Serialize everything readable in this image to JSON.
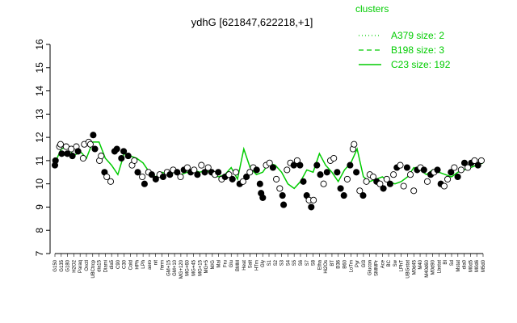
{
  "chart_data": {
    "type": "line",
    "title": "ydhG [621847,622218,+1]",
    "ylim": [
      7,
      16
    ],
    "yticks": [
      7,
      8,
      9,
      10,
      11,
      12,
      13,
      14,
      15,
      16
    ],
    "grid": false,
    "legend_placement": "top-right",
    "legend": {
      "title": "clusters",
      "items": [
        {
          "label": "A379 size: 2",
          "style": "dotted"
        },
        {
          "label": "B198 size: 3",
          "style": "dashed"
        },
        {
          "label": "C23 size: 192",
          "style": "solid"
        }
      ]
    },
    "x_tick_labels": [
      "G150",
      "G135",
      "G180",
      "H2O2",
      "Paraq",
      "Oxctl",
      "UBCtrcp",
      "dia15",
      "Diami",
      "dia5",
      "C90",
      "C30",
      "Cold",
      "HPh",
      "LPh",
      "aero",
      "nit",
      "ferm",
      "GM+15",
      "GM+10",
      "MG+120",
      "MG+60",
      "MG+45",
      "MG+15",
      "MG+5",
      "M/G",
      "Mal",
      "Fru",
      "Glu",
      "BMM",
      "Heat",
      "Salt",
      "HTm",
      "Gly",
      "S1",
      "S2",
      "S3",
      "S4",
      "S5",
      "S6",
      "S7",
      "S8",
      "Etha",
      "Hi2Os",
      "BT",
      "B36",
      "B60",
      "LoTm",
      "Pyr",
      "Gl3",
      "Glucon",
      "SMMPr",
      "Ace",
      "BC",
      "Sw",
      "LPhT",
      "UBGstat",
      "M0d45",
      "M40",
      "M40d60",
      "M0d90",
      "Lbstat",
      "BI",
      "Sd",
      "Mstat",
      "dia0",
      "M0d5",
      "M0d6",
      "M5d0"
    ],
    "series": [
      {
        "name": "",
        "style": "solid",
        "x": [
          0,
          1,
          2,
          3,
          4,
          5,
          6,
          7,
          8,
          9,
          10,
          11,
          12,
          13,
          14,
          15,
          16,
          17,
          18,
          19,
          20,
          21,
          22,
          23,
          24,
          25,
          26,
          27,
          28,
          29,
          30,
          31,
          32,
          33,
          34,
          35,
          36,
          37,
          38,
          39,
          40,
          41,
          42,
          43,
          44,
          45,
          46,
          47,
          48,
          49,
          50,
          51,
          52,
          53,
          54,
          55,
          56,
          57,
          58,
          59,
          60,
          61,
          62,
          63,
          64,
          65,
          66,
          67,
          68
        ],
        "values": [
          10.9,
          11.5,
          11.6,
          11.2,
          11.4,
          11.1,
          11.8,
          11.8,
          11.1,
          10.8,
          10.4,
          11.3,
          11.2,
          11.1,
          10.9,
          10.5,
          10.3,
          10.5,
          10.4,
          10.5,
          10.4,
          10.5,
          10.6,
          10.5,
          10.6,
          10.4,
          10.3,
          10.4,
          10.7,
          10.2,
          11.5,
          10.7,
          10.4,
          10.5,
          10.9,
          10.8,
          10.5,
          10.0,
          9.8,
          10.1,
          10.6,
          10.5,
          11.3,
          10.8,
          10.5,
          10.1,
          10.6,
          10.9,
          11.5,
          10.3,
          10.1,
          10.2,
          10.3,
          10.1,
          10.0,
          10.1,
          10.3,
          10.7,
          10.6,
          10.4,
          10.6,
          10.5,
          10.4,
          10.3,
          10.5,
          10.6,
          10.7,
          10.8,
          10.9
        ]
      }
    ],
    "points": [
      {
        "x": 0,
        "y": 10.8,
        "f": true
      },
      {
        "x": 0.1,
        "y": 11.0,
        "f": true
      },
      {
        "x": 0.8,
        "y": 11.6,
        "f": false
      },
      {
        "x": 1,
        "y": 11.7,
        "f": false
      },
      {
        "x": 1.2,
        "y": 11.3,
        "f": true
      },
      {
        "x": 2,
        "y": 11.6,
        "f": false
      },
      {
        "x": 2.2,
        "y": 11.3,
        "f": true
      },
      {
        "x": 2.9,
        "y": 11.5,
        "f": false
      },
      {
        "x": 3.1,
        "y": 11.2,
        "f": true
      },
      {
        "x": 3.8,
        "y": 11.6,
        "f": false
      },
      {
        "x": 4.1,
        "y": 11.4,
        "f": true
      },
      {
        "x": 5,
        "y": 11.1,
        "f": false
      },
      {
        "x": 5.2,
        "y": 11.7,
        "f": false
      },
      {
        "x": 6,
        "y": 11.8,
        "f": false
      },
      {
        "x": 6.3,
        "y": 11.7,
        "f": false
      },
      {
        "x": 6.8,
        "y": 12.1,
        "f": true
      },
      {
        "x": 7.1,
        "y": 11.5,
        "f": true
      },
      {
        "x": 7.9,
        "y": 11.0,
        "f": false
      },
      {
        "x": 8.2,
        "y": 11.2,
        "f": false
      },
      {
        "x": 8.8,
        "y": 10.5,
        "f": true
      },
      {
        "x": 9.2,
        "y": 10.3,
        "f": false
      },
      {
        "x": 9.9,
        "y": 10.1,
        "f": false
      },
      {
        "x": 10.6,
        "y": 11.4,
        "f": true
      },
      {
        "x": 11,
        "y": 11.5,
        "f": true
      },
      {
        "x": 11.8,
        "y": 11.1,
        "f": true
      },
      {
        "x": 12.2,
        "y": 11.4,
        "f": true
      },
      {
        "x": 13,
        "y": 11.2,
        "f": true
      },
      {
        "x": 13.7,
        "y": 10.8,
        "f": false
      },
      {
        "x": 14.1,
        "y": 11.0,
        "f": false
      },
      {
        "x": 14.7,
        "y": 10.5,
        "f": true
      },
      {
        "x": 15.5,
        "y": 10.3,
        "f": false
      },
      {
        "x": 15.9,
        "y": 10.0,
        "f": true
      },
      {
        "x": 16.6,
        "y": 10.5,
        "f": false
      },
      {
        "x": 17.2,
        "y": 10.4,
        "f": true
      },
      {
        "x": 17.9,
        "y": 10.2,
        "f": true
      },
      {
        "x": 18.6,
        "y": 10.4,
        "f": false
      },
      {
        "x": 19.2,
        "y": 10.3,
        "f": true
      },
      {
        "x": 19.9,
        "y": 10.5,
        "f": false
      },
      {
        "x": 20.4,
        "y": 10.4,
        "f": true
      },
      {
        "x": 21,
        "y": 10.6,
        "f": false
      },
      {
        "x": 21.7,
        "y": 10.5,
        "f": true
      },
      {
        "x": 22.3,
        "y": 10.3,
        "f": false
      },
      {
        "x": 22.9,
        "y": 10.6,
        "f": true
      },
      {
        "x": 23.5,
        "y": 10.7,
        "f": false
      },
      {
        "x": 24.1,
        "y": 10.5,
        "f": true
      },
      {
        "x": 24.7,
        "y": 10.6,
        "f": false
      },
      {
        "x": 25.3,
        "y": 10.4,
        "f": true
      },
      {
        "x": 26,
        "y": 10.8,
        "f": false
      },
      {
        "x": 26.6,
        "y": 10.5,
        "f": true
      },
      {
        "x": 27.2,
        "y": 10.7,
        "f": false
      },
      {
        "x": 27.8,
        "y": 10.5,
        "f": true
      },
      {
        "x": 28.4,
        "y": 10.4,
        "f": false
      },
      {
        "x": 29,
        "y": 10.5,
        "f": true
      },
      {
        "x": 29.6,
        "y": 10.2,
        "f": false
      },
      {
        "x": 30.2,
        "y": 10.3,
        "f": true
      },
      {
        "x": 30.9,
        "y": 10.4,
        "f": false
      },
      {
        "x": 31.5,
        "y": 10.2,
        "f": true
      },
      {
        "x": 32.1,
        "y": 10.5,
        "f": false
      },
      {
        "x": 32.8,
        "y": 10.0,
        "f": true
      },
      {
        "x": 33.4,
        "y": 10.1,
        "f": false
      },
      {
        "x": 34,
        "y": 10.3,
        "f": true
      },
      {
        "x": 34.6,
        "y": 10.5,
        "f": false
      },
      {
        "x": 35.2,
        "y": 10.7,
        "f": false
      },
      {
        "x": 35.8,
        "y": 10.6,
        "f": true
      },
      {
        "x": 36.4,
        "y": 10.0,
        "f": true
      },
      {
        "x": 36.6,
        "y": 9.6,
        "f": true
      },
      {
        "x": 36.9,
        "y": 9.4,
        "f": true
      },
      {
        "x": 37.5,
        "y": 10.8,
        "f": false
      },
      {
        "x": 38.1,
        "y": 10.9,
        "f": false
      },
      {
        "x": 38.7,
        "y": 10.7,
        "f": true
      },
      {
        "x": 39.3,
        "y": 10.2,
        "f": false
      },
      {
        "x": 39.9,
        "y": 9.8,
        "f": false
      },
      {
        "x": 40.4,
        "y": 9.5,
        "f": true
      },
      {
        "x": 40.6,
        "y": 9.1,
        "f": true
      },
      {
        "x": 41.2,
        "y": 10.6,
        "f": false
      },
      {
        "x": 41.8,
        "y": 10.9,
        "f": false
      },
      {
        "x": 42.4,
        "y": 10.8,
        "f": true
      },
      {
        "x": 43,
        "y": 11.0,
        "f": false
      },
      {
        "x": 43.5,
        "y": 10.8,
        "f": true
      },
      {
        "x": 44.1,
        "y": 10.1,
        "f": true
      },
      {
        "x": 44.7,
        "y": 9.5,
        "f": true
      },
      {
        "x": 45.1,
        "y": 9.3,
        "f": false
      },
      {
        "x": 45.5,
        "y": 9.0,
        "f": true
      },
      {
        "x": 45.9,
        "y": 9.3,
        "f": false
      },
      {
        "x": 46.5,
        "y": 10.8,
        "f": true
      },
      {
        "x": 47.1,
        "y": 10.4,
        "f": true
      },
      {
        "x": 47.7,
        "y": 10.0,
        "f": false
      },
      {
        "x": 48.3,
        "y": 10.5,
        "f": true
      },
      {
        "x": 48.9,
        "y": 11.0,
        "f": false
      },
      {
        "x": 49.5,
        "y": 11.1,
        "f": false
      },
      {
        "x": 50.1,
        "y": 10.5,
        "f": true
      },
      {
        "x": 50.7,
        "y": 9.8,
        "f": true
      },
      {
        "x": 51.3,
        "y": 9.5,
        "f": true
      },
      {
        "x": 51.9,
        "y": 10.2,
        "f": false
      },
      {
        "x": 52.4,
        "y": 10.8,
        "f": true
      },
      {
        "x": 52.9,
        "y": 11.5,
        "f": false
      },
      {
        "x": 53.1,
        "y": 11.7,
        "f": false
      },
      {
        "x": 53.5,
        "y": 10.5,
        "f": true
      },
      {
        "x": 54.1,
        "y": 9.7,
        "f": false
      },
      {
        "x": 54.7,
        "y": 9.5,
        "f": true
      },
      {
        "x": 55.3,
        "y": 10.1,
        "f": false
      },
      {
        "x": 55.9,
        "y": 10.4,
        "f": false
      },
      {
        "x": 56.5,
        "y": 10.3,
        "f": false
      },
      {
        "x": 57.1,
        "y": 10.1,
        "f": true
      },
      {
        "x": 57.7,
        "y": 10.0,
        "f": false
      },
      {
        "x": 58.3,
        "y": 9.8,
        "f": true
      },
      {
        "x": 58.9,
        "y": 10.2,
        "f": false
      },
      {
        "x": 59.5,
        "y": 10.0,
        "f": true
      },
      {
        "x": 60.1,
        "y": 10.4,
        "f": false
      },
      {
        "x": 60.7,
        "y": 10.7,
        "f": true
      },
      {
        "x": 61.3,
        "y": 10.8,
        "f": false
      },
      {
        "x": 61.9,
        "y": 9.9,
        "f": false
      },
      {
        "x": 62.5,
        "y": 10.7,
        "f": true
      },
      {
        "x": 63.1,
        "y": 10.4,
        "f": false
      },
      {
        "x": 63.7,
        "y": 9.7,
        "f": false
      },
      {
        "x": 64.3,
        "y": 10.6,
        "f": true
      },
      {
        "x": 64.9,
        "y": 10.7,
        "f": false
      },
      {
        "x": 65.5,
        "y": 10.6,
        "f": true
      },
      {
        "x": 66.1,
        "y": 10.1,
        "f": false
      },
      {
        "x": 66.7,
        "y": 10.4,
        "f": true
      },
      {
        "x": 67.3,
        "y": 10.5,
        "f": false
      },
      {
        "x": 67.9,
        "y": 10.6,
        "f": true
      },
      {
        "x": 68.5,
        "y": 10.0,
        "f": true
      },
      {
        "x": 69.1,
        "y": 9.9,
        "f": false
      },
      {
        "x": 69.7,
        "y": 10.2,
        "f": false
      },
      {
        "x": 70.3,
        "y": 10.5,
        "f": true
      },
      {
        "x": 70.9,
        "y": 10.7,
        "f": false
      },
      {
        "x": 71.5,
        "y": 10.3,
        "f": true
      },
      {
        "x": 72.1,
        "y": 10.6,
        "f": false
      },
      {
        "x": 72.7,
        "y": 10.9,
        "f": true
      },
      {
        "x": 73.3,
        "y": 10.7,
        "f": false
      },
      {
        "x": 73.9,
        "y": 10.9,
        "f": true
      },
      {
        "x": 74.5,
        "y": 11.0,
        "f": false
      },
      {
        "x": 75.1,
        "y": 10.8,
        "f": true
      },
      {
        "x": 75.7,
        "y": 11.0,
        "f": false
      }
    ]
  }
}
